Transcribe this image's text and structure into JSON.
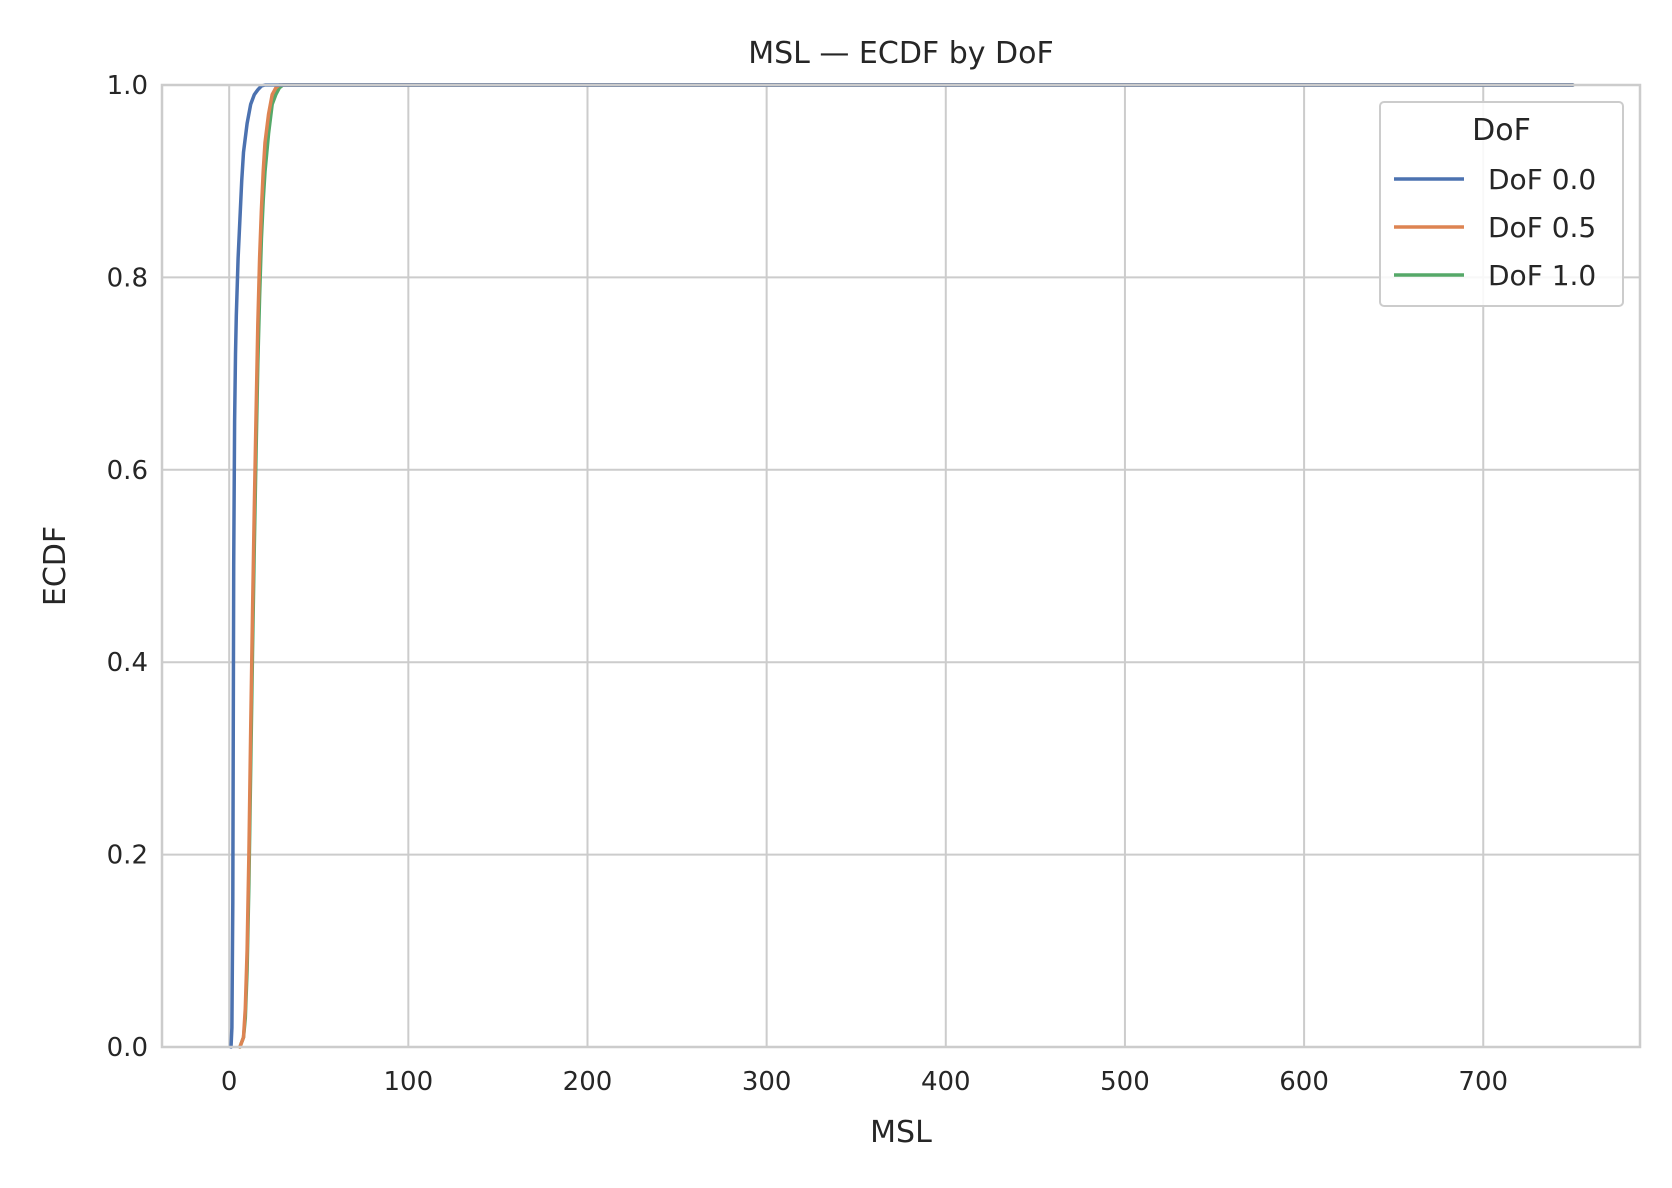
{
  "chart_data": {
    "type": "line",
    "title": "MSL — ECDF by DoF",
    "xlabel": "MSL",
    "ylabel": "ECDF",
    "xlim": [
      -37.5,
      787.5
    ],
    "ylim": [
      0.0,
      1.0
    ],
    "xticks": [
      0,
      100,
      200,
      300,
      400,
      500,
      600,
      700
    ],
    "yticks": [
      0.0,
      0.2,
      0.4,
      0.6,
      0.8,
      1.0
    ],
    "ytick_labels": [
      "0.0",
      "0.2",
      "0.4",
      "0.6",
      "0.8",
      "1.0"
    ],
    "grid": true,
    "legend": {
      "title": "DoF",
      "placement": "top-right"
    },
    "series": [
      {
        "name": "DoF 0.0",
        "color": "#4c72b0",
        "x": [
          1,
          1.5,
          2,
          2.5,
          3,
          3.5,
          4,
          5,
          6,
          7,
          8,
          10,
          12,
          14,
          16,
          18,
          20,
          750
        ],
        "y": [
          0.0,
          0.02,
          0.15,
          0.5,
          0.65,
          0.72,
          0.76,
          0.82,
          0.86,
          0.9,
          0.93,
          0.96,
          0.98,
          0.99,
          0.995,
          0.999,
          1.0,
          1.0
        ]
      },
      {
        "name": "DoF 0.5",
        "color": "#dd8452",
        "x": [
          6,
          8,
          9,
          10,
          11,
          12,
          13,
          14,
          15,
          16,
          17,
          18,
          19,
          20,
          22,
          24,
          26,
          28,
          750
        ],
        "y": [
          0.0,
          0.01,
          0.04,
          0.1,
          0.2,
          0.33,
          0.45,
          0.56,
          0.66,
          0.75,
          0.82,
          0.87,
          0.91,
          0.94,
          0.97,
          0.99,
          0.997,
          1.0,
          1.0
        ]
      },
      {
        "name": "DoF 1.0",
        "color": "#55a868",
        "x": [
          6,
          8,
          9,
          10,
          11,
          12,
          13,
          14,
          15,
          16,
          17,
          18,
          19,
          20,
          22,
          24,
          26,
          28,
          30,
          750
        ],
        "y": [
          0.0,
          0.01,
          0.03,
          0.08,
          0.17,
          0.29,
          0.41,
          0.52,
          0.62,
          0.71,
          0.78,
          0.84,
          0.88,
          0.91,
          0.95,
          0.98,
          0.99,
          0.997,
          1.0,
          1.0
        ]
      }
    ]
  }
}
